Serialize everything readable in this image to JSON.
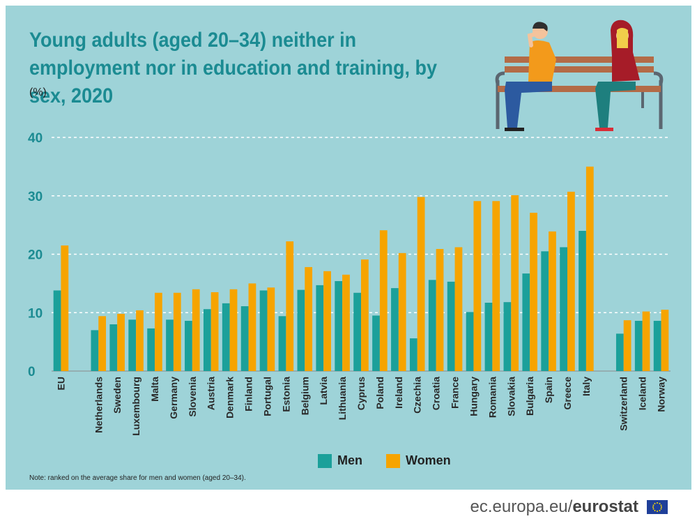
{
  "title": "Young adults (aged 20–34) neither in employment nor in education and training, by sex, 2020",
  "unit": "(%)",
  "note": "Note: ranked on the average share for men and women (aged 20–34).",
  "footer": {
    "site_prefix": "ec.europa.eu/",
    "site_brand": "eurostat"
  },
  "colors": {
    "men": "#1ba09a",
    "women": "#f6a400",
    "background": "#9ed3d8",
    "title": "#1b8b92"
  },
  "chart_data": {
    "type": "bar",
    "title": "Young adults (aged 20–34) neither in employment nor in education and training, by sex, 2020",
    "ylabel": "(%)",
    "ylim": [
      0,
      40
    ],
    "yticks": [
      0,
      10,
      20,
      30,
      40
    ],
    "grid": true,
    "legend_position": "bottom",
    "categories": [
      "EU",
      "Netherlands",
      "Sweden",
      "Luxembourg",
      "Malta",
      "Germany",
      "Slovenia",
      "Austria",
      "Denmark",
      "Finland",
      "Portugal",
      "Estonia",
      "Belgium",
      "Latvia",
      "Lithuania",
      "Cyprus",
      "Poland",
      "Ireland",
      "Czechia",
      "Croatia",
      "France",
      "Hungary",
      "Romania",
      "Slovakia",
      "Bulgaria",
      "Spain",
      "Greece",
      "Italy",
      "Switzerland",
      "Iceland",
      "Norway"
    ],
    "groups": [
      [
        0
      ],
      [
        1,
        27
      ],
      [
        28,
        30
      ]
    ],
    "series": [
      {
        "name": "Men",
        "values": [
          13.8,
          7.0,
          8.0,
          8.8,
          7.3,
          8.8,
          8.6,
          10.6,
          11.6,
          11.1,
          13.8,
          9.4,
          13.9,
          14.7,
          15.4,
          13.4,
          9.5,
          14.2,
          5.6,
          15.6,
          15.3,
          10.1,
          11.7,
          11.8,
          16.7,
          20.5,
          21.2,
          24.0,
          6.4,
          8.6,
          8.6
        ]
      },
      {
        "name": "Women",
        "values": [
          21.5,
          9.4,
          9.8,
          10.4,
          13.4,
          13.4,
          14.0,
          13.5,
          14.0,
          15.0,
          14.3,
          22.2,
          17.8,
          17.1,
          16.5,
          19.1,
          24.1,
          20.2,
          29.8,
          20.9,
          21.2,
          29.1,
          29.1,
          30.1,
          27.1,
          23.9,
          30.7,
          35.0,
          8.7,
          10.2,
          10.5
        ]
      }
    ]
  }
}
